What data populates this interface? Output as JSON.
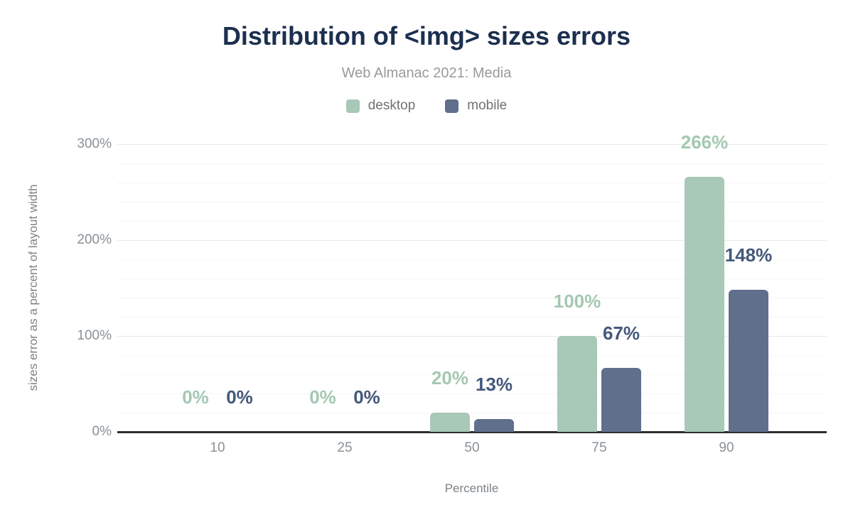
{
  "header": {
    "title": "Distribution of <img> sizes errors",
    "subtitle": "Web Almanac 2021: Media"
  },
  "legend": [
    {
      "label": "desktop",
      "color": "#a8c8b8"
    },
    {
      "label": "mobile",
      "color": "#5f6f8c"
    }
  ],
  "chart_data": {
    "type": "bar",
    "title": "Distribution of <img> sizes errors",
    "subtitle": "Web Almanac 2021: Media",
    "categories": [
      "10",
      "25",
      "50",
      "75",
      "90"
    ],
    "series": [
      {
        "name": "desktop",
        "color": "#a8c8b8",
        "label_color": "#a4c8b2",
        "values": [
          0,
          0,
          20,
          100,
          266
        ],
        "labels": [
          "0%",
          "0%",
          "20%",
          "100%",
          "266%"
        ]
      },
      {
        "name": "mobile",
        "color": "#5f6f8c",
        "label_color": "#44587c",
        "values": [
          0,
          0,
          13,
          67,
          148
        ],
        "labels": [
          "0%",
          "0%",
          "13%",
          "67%",
          "148%"
        ]
      }
    ],
    "xlabel": "Percentile",
    "ylabel": "sizes error as a percent of layout width",
    "ylim": [
      0,
      300
    ],
    "yticks": [
      0,
      100,
      200,
      300
    ],
    "ytick_labels": [
      "0%",
      "100%",
      "200%",
      "300%"
    ],
    "minor_grid_step": 20,
    "grid": true,
    "legend_position": "top",
    "axis_color": "#2e2e2e"
  }
}
